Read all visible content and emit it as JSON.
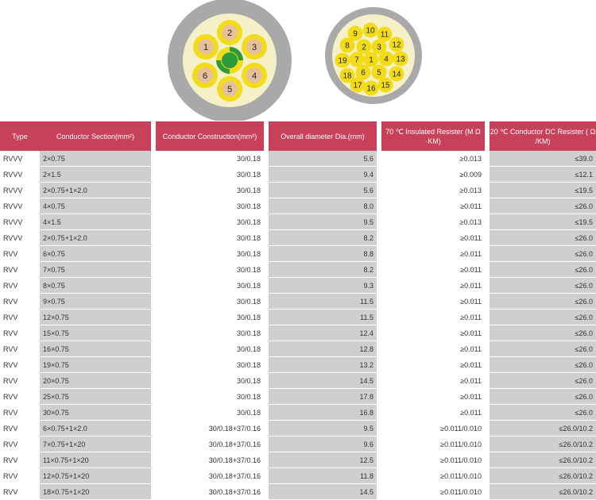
{
  "diagrams": {
    "left": {
      "labels": [
        "1",
        "2",
        "3",
        "4",
        "5",
        "6"
      ]
    },
    "right": {
      "labels": [
        "1",
        "2",
        "3",
        "4",
        "5",
        "6",
        "7",
        "8",
        "9",
        "10",
        "11",
        "12",
        "13",
        "14",
        "15",
        "16",
        "17",
        "18",
        "19"
      ]
    }
  },
  "table": {
    "headers": {
      "type": "Type",
      "section": "Conductor Section(mm²)",
      "construction": "Conductor Construction(mm²)",
      "diameter": "Overall diameter Dia.(mm)",
      "insulated": "70 ℃ Insulated Resister (M Ω ·KM)",
      "dc": "20 ℃ Conductor DC Resister ( Ω /KM)"
    },
    "rows": [
      {
        "type": "RVVV",
        "section": "2×0.75",
        "construction": "30/0.18",
        "diameter": "5.6",
        "insulated": "≥0.013",
        "dc": "≤39.0"
      },
      {
        "type": "RVVV",
        "section": "2×1.5",
        "construction": "30/0.18",
        "diameter": "9.4",
        "insulated": "≥0.009",
        "dc": "≤12.1"
      },
      {
        "type": "RVVV",
        "section": "2×0.75+1×2.0",
        "construction": "30/0.18",
        "diameter": "5.6",
        "insulated": "≥0.013",
        "dc": "≤19.5"
      },
      {
        "type": "RVVV",
        "section": "4×0.75",
        "construction": "30/0.18",
        "diameter": "8.0",
        "insulated": "≥0.011",
        "dc": "≤26.0"
      },
      {
        "type": "RVVV",
        "section": "4×1.5",
        "construction": "30/0.18",
        "diameter": "9.5",
        "insulated": "≥0.013",
        "dc": "≤19.5"
      },
      {
        "type": "RVVV",
        "section": "2×0.75+1×2.0",
        "construction": "30/0.18",
        "diameter": "8.2",
        "insulated": "≥0.011",
        "dc": "≤26.0"
      },
      {
        "type": "RVV",
        "section": "6×0.75",
        "construction": "30/0.18",
        "diameter": "8.8",
        "insulated": "≥0.011",
        "dc": "≤26.0"
      },
      {
        "type": "RVV",
        "section": "7×0.75",
        "construction": "30/0.18",
        "diameter": "8.2",
        "insulated": "≥0.011",
        "dc": "≤26.0"
      },
      {
        "type": "RVV",
        "section": "8×0.75",
        "construction": "30/0.18",
        "diameter": "9.3",
        "insulated": "≥0.011",
        "dc": "≤26.0"
      },
      {
        "type": "RVV",
        "section": "9×0.75",
        "construction": "30/0.18",
        "diameter": "11.5",
        "insulated": "≥0.011",
        "dc": "≤26.0"
      },
      {
        "type": "RVV",
        "section": "12×0.75",
        "construction": "30/0.18",
        "diameter": "11.5",
        "insulated": "≥0.011",
        "dc": "≤26.0"
      },
      {
        "type": "RVV",
        "section": "15×0.75",
        "construction": "30/0.18",
        "diameter": "12.4",
        "insulated": "≥0.011",
        "dc": "≤26.0"
      },
      {
        "type": "RVV",
        "section": "16×0.75",
        "construction": "30/0.18",
        "diameter": "12.8",
        "insulated": "≥0.011",
        "dc": "≤26.0"
      },
      {
        "type": "RVV",
        "section": "19×0.75",
        "construction": "30/0.18",
        "diameter": "13.2",
        "insulated": "≥0.011",
        "dc": "≤26.0"
      },
      {
        "type": "RVV",
        "section": "20×0.75",
        "construction": "30/0.18",
        "diameter": "14.5",
        "insulated": "≥0.011",
        "dc": "≤26.0"
      },
      {
        "type": "RVV",
        "section": "25×0.75",
        "construction": "30/0.18",
        "diameter": "17.8",
        "insulated": "≥0.011",
        "dc": "≤26.0"
      },
      {
        "type": "RVV",
        "section": "30×0.75",
        "construction": "30/0.18",
        "diameter": "16.8",
        "insulated": "≥0.011",
        "dc": "≤26.0"
      },
      {
        "type": "RVV",
        "section": "6×0.75+1×2.0",
        "construction": "30/0.18+37/0.16",
        "diameter": "9.5",
        "insulated": "≥0.011/0.010",
        "dc": "≤26.0/10.2"
      },
      {
        "type": "RVV",
        "section": "7×0.75+1×20",
        "construction": "30/0.18+37/0.16",
        "diameter": "9.6",
        "insulated": "≥0.011/0.010",
        "dc": "≤26.0/10.2"
      },
      {
        "type": "RVV",
        "section": "11×0.75+1×20",
        "construction": "30/0.18+37/0.16",
        "diameter": "12.5",
        "insulated": "≥0.011/0.010",
        "dc": "≤26.0/10.2"
      },
      {
        "type": "RVV",
        "section": "12×0.75+1×20",
        "construction": "30/0.18+37/0.16",
        "diameter": "11.8",
        "insulated": "≥0.011/0.010",
        "dc": "≤26.0/10.2"
      },
      {
        "type": "RVV",
        "section": "18×0.75+1×20",
        "construction": "30/0.18+37/0.16",
        "diameter": "14.5",
        "insulated": "≥0.011/0.010",
        "dc": "≤26.0/10.2"
      }
    ]
  },
  "colors": {
    "header_bg": "#c9405a",
    "header_text": "#ffffff",
    "grey_cell": "#cfcfcf",
    "sheath": "#a9a9a9",
    "core_yellow": "#f2dc1a",
    "copper": "#e6c09a",
    "earth_green": "#2e9b3b"
  }
}
